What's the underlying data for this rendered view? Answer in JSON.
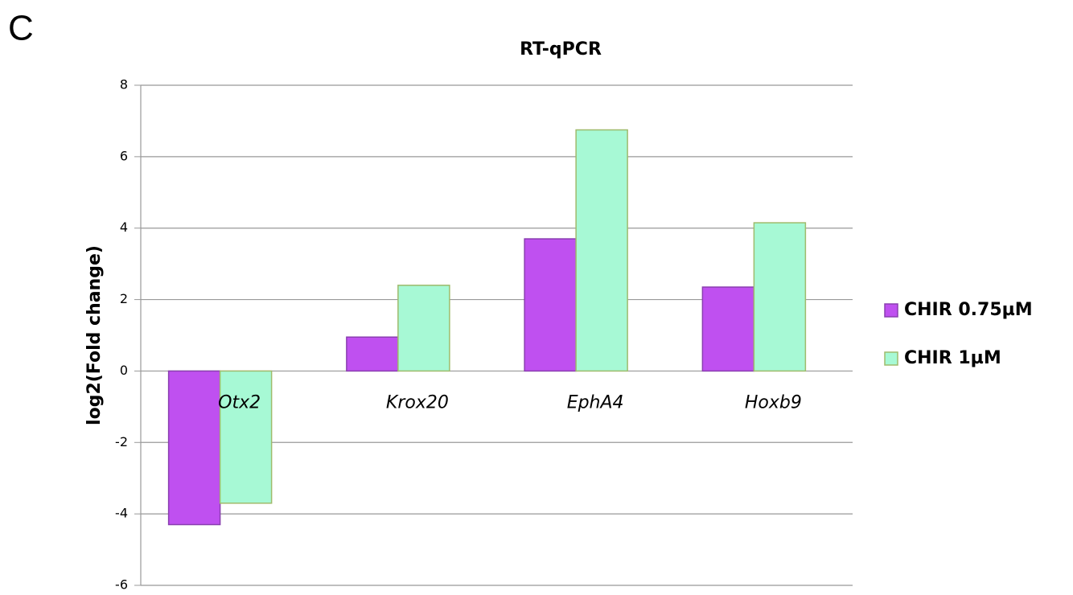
{
  "chart_data": {
    "type": "bar",
    "panel_label": "C",
    "title": "RT-qPCR",
    "y_label": "log2(Fold change)",
    "categories": [
      "Otx2",
      "Krox20",
      "EphA4",
      "Hoxb9"
    ],
    "series": [
      {
        "name": "CHIR 0.75µM",
        "color": "#bf50f0",
        "values": [
          -4.3,
          0.95,
          3.7,
          2.35
        ]
      },
      {
        "name": "CHIR 1µM",
        "color": "#a7f9d5",
        "values": [
          -3.7,
          2.4,
          6.75,
          4.15
        ]
      }
    ],
    "ylim": [
      -6,
      8
    ],
    "yticks": [
      -6,
      -4,
      -2,
      0,
      2,
      4,
      6,
      8
    ],
    "grid": true,
    "legend": "right"
  }
}
